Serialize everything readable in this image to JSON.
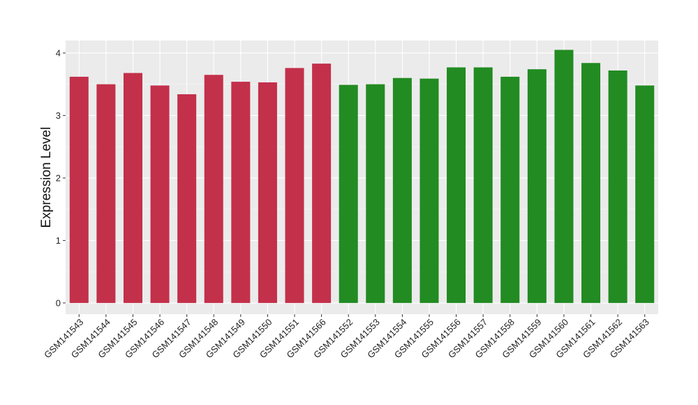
{
  "chart_data": {
    "type": "bar",
    "xlabel": "",
    "ylabel": "Expression Level",
    "ylim": [
      -0.18,
      4.2
    ],
    "yticks": [
      0,
      1,
      2,
      3,
      4
    ],
    "grid": true,
    "legend": "none",
    "colors": {
      "panel_background": "#EBEBEB",
      "major_grid": "#FFFFFF",
      "group_1": "#C3304A",
      "group_2": "#228B22"
    },
    "categories": [
      "GSM141543",
      "GSM141544",
      "GSM141545",
      "GSM141546",
      "GSM141547",
      "GSM141548",
      "GSM141549",
      "GSM141550",
      "GSM141551",
      "GSM141566",
      "GSM141552",
      "GSM141553",
      "GSM141554",
      "GSM141555",
      "GSM141556",
      "GSM141557",
      "GSM141558",
      "GSM141559",
      "GSM141560",
      "GSM141561",
      "GSM141562",
      "GSM141563"
    ],
    "values": [
      3.62,
      3.5,
      3.68,
      3.48,
      3.34,
      3.65,
      3.54,
      3.53,
      3.76,
      3.83,
      3.49,
      3.5,
      3.6,
      3.59,
      3.77,
      3.77,
      3.62,
      3.74,
      4.05,
      3.84,
      3.72,
      3.48
    ],
    "bar_groups": [
      "group_1",
      "group_1",
      "group_1",
      "group_1",
      "group_1",
      "group_1",
      "group_1",
      "group_1",
      "group_1",
      "group_1",
      "group_2",
      "group_2",
      "group_2",
      "group_2",
      "group_2",
      "group_2",
      "group_2",
      "group_2",
      "group_2",
      "group_2",
      "group_2",
      "group_2"
    ]
  }
}
